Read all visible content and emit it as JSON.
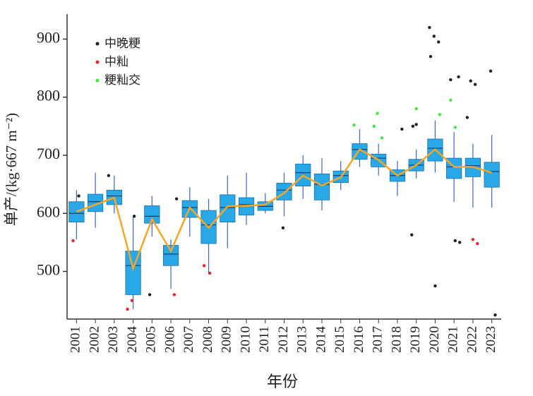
{
  "chart_data": {
    "type": "box",
    "xlabel": "年份",
    "ylabel": "单产/(kg·667 m⁻²)",
    "categories": [
      "2001",
      "2002",
      "2003",
      "2004",
      "2005",
      "2006",
      "2007",
      "2008",
      "2009",
      "2010",
      "2011",
      "2012",
      "2013",
      "2014",
      "2015",
      "2016",
      "2017",
      "2018",
      "2019",
      "2020",
      "2021",
      "2022",
      "2023"
    ],
    "box_color": "#29a8e8",
    "whisker_low": [
      555,
      575,
      600,
      435,
      560,
      470,
      560,
      495,
      540,
      580,
      600,
      595,
      625,
      605,
      640,
      680,
      665,
      630,
      660,
      670,
      620,
      610,
      610
    ],
    "q1": [
      585,
      603,
      615,
      460,
      583,
      510,
      593,
      548,
      585,
      597,
      605,
      623,
      647,
      623,
      653,
      693,
      680,
      655,
      673,
      690,
      660,
      663,
      645
    ],
    "median": [
      600,
      620,
      630,
      510,
      595,
      530,
      610,
      580,
      610,
      615,
      612,
      640,
      670,
      650,
      665,
      710,
      695,
      665,
      683,
      712,
      680,
      682,
      672
    ],
    "q3": [
      620,
      633,
      640,
      535,
      613,
      545,
      622,
      605,
      632,
      627,
      620,
      652,
      685,
      668,
      673,
      720,
      702,
      675,
      693,
      728,
      695,
      695,
      688
    ],
    "whisker_high": [
      640,
      670,
      665,
      595,
      630,
      555,
      645,
      625,
      665,
      670,
      635,
      670,
      700,
      695,
      690,
      745,
      720,
      690,
      710,
      760,
      740,
      720,
      735
    ],
    "mean": [
      603,
      615,
      627,
      505,
      590,
      535,
      610,
      575,
      612,
      613,
      615,
      635,
      665,
      648,
      662,
      710,
      692,
      665,
      683,
      710,
      680,
      680,
      670
    ],
    "mean_color": "#f5a623",
    "series": [
      {
        "name": "中晚粳",
        "color": "#222222",
        "x": [
          "2020",
          "2020",
          "2020",
          "2020",
          "2020",
          "2021",
          "2021",
          "2021",
          "2021",
          "2022",
          "2022",
          "2022",
          "2023",
          "2023",
          "2019",
          "2019",
          "2018",
          "2019",
          "2004",
          "2006",
          "2005",
          "2001",
          "2003",
          "2012"
        ],
        "values": [
          920,
          905,
          895,
          870,
          475,
          835,
          830,
          553,
          550,
          828,
          822,
          765,
          845,
          425,
          563,
          753,
          745,
          750,
          595,
          625,
          460,
          630,
          665,
          575
        ]
      },
      {
        "name": "中籼",
        "color": "#e8262a",
        "x": [
          "2004",
          "2004",
          "2006",
          "2008",
          "2022",
          "2022",
          "2001",
          "2008"
        ],
        "values": [
          435,
          450,
          460,
          510,
          555,
          548,
          553,
          497
        ]
      },
      {
        "name": "粳籼交",
        "color": "#3ee83e",
        "x": [
          "2016",
          "2017",
          "2017",
          "2017",
          "2019",
          "2020",
          "2021",
          "2021"
        ],
        "values": [
          752,
          772,
          730,
          750,
          780,
          770,
          795,
          748
        ]
      }
    ],
    "ylim": [
      418,
      943
    ],
    "yticks": [
      500,
      600,
      700,
      800,
      900
    ]
  }
}
